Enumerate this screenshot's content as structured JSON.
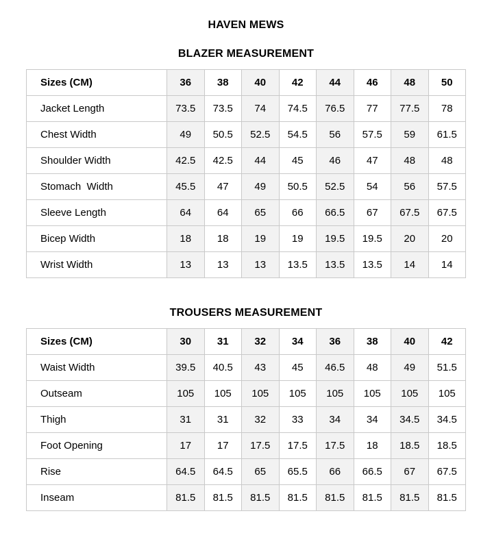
{
  "page": {
    "title": "HAVEN MEWS"
  },
  "colors": {
    "shaded_column": "#f2f2f2",
    "border": "#c9c9c9",
    "text": "#000000",
    "background": "#ffffff"
  },
  "tables": [
    {
      "title": "BLAZER MEASUREMENT",
      "header": [
        "Sizes (CM)",
        "36",
        "38",
        "40",
        "42",
        "44",
        "46",
        "48",
        "50"
      ],
      "rows": [
        {
          "label": "Jacket Length",
          "values": [
            "73.5",
            "73.5",
            "74",
            "74.5",
            "76.5",
            "77",
            "77.5",
            "78"
          ]
        },
        {
          "label": "Chest Width",
          "values": [
            "49",
            "50.5",
            "52.5",
            "54.5",
            "56",
            "57.5",
            "59",
            "61.5"
          ]
        },
        {
          "label": "Shoulder Width",
          "values": [
            "42.5",
            "42.5",
            "44",
            "45",
            "46",
            "47",
            "48",
            "48"
          ]
        },
        {
          "label": "Stomach  Width",
          "values": [
            "45.5",
            "47",
            "49",
            "50.5",
            "52.5",
            "54",
            "56",
            "57.5"
          ]
        },
        {
          "label": "Sleeve Length",
          "values": [
            "64",
            "64",
            "65",
            "66",
            "66.5",
            "67",
            "67.5",
            "67.5"
          ]
        },
        {
          "label": "Bicep Width",
          "values": [
            "18",
            "18",
            "19",
            "19",
            "19.5",
            "19.5",
            "20",
            "20"
          ]
        },
        {
          "label": "Wrist Width",
          "values": [
            "13",
            "13",
            "13",
            "13.5",
            "13.5",
            "13.5",
            "14",
            "14"
          ]
        }
      ]
    },
    {
      "title": "TROUSERS MEASUREMENT",
      "header": [
        "Sizes (CM)",
        "30",
        "31",
        "32",
        "34",
        "36",
        "38",
        "40",
        "42"
      ],
      "rows": [
        {
          "label": "Waist Width",
          "values": [
            "39.5",
            "40.5",
            "43",
            "45",
            "46.5",
            "48",
            "49",
            "51.5"
          ]
        },
        {
          "label": "Outseam",
          "values": [
            "105",
            "105",
            "105",
            "105",
            "105",
            "105",
            "105",
            "105"
          ]
        },
        {
          "label": "Thigh",
          "values": [
            "31",
            "31",
            "32",
            "33",
            "34",
            "34",
            "34.5",
            "34.5"
          ]
        },
        {
          "label": "Foot Opening",
          "values": [
            "17",
            "17",
            "17.5",
            "17.5",
            "17.5",
            "18",
            "18.5",
            "18.5"
          ]
        },
        {
          "label": "Rise",
          "values": [
            "64.5",
            "64.5",
            "65",
            "65.5",
            "66",
            "66.5",
            "67",
            "67.5"
          ]
        },
        {
          "label": "Inseam",
          "values": [
            "81.5",
            "81.5",
            "81.5",
            "81.5",
            "81.5",
            "81.5",
            "81.5",
            "81.5"
          ]
        }
      ]
    }
  ]
}
